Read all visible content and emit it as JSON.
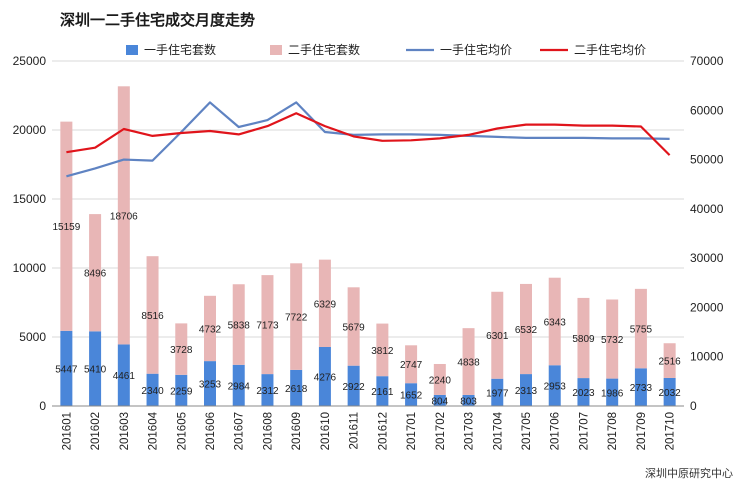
{
  "title": "深圳一二手住宅成交月度走势",
  "source": "深圳中原研究中心",
  "colors": {
    "new_bar": "#4a86d9",
    "second_bar": "#e8b6b6",
    "new_price_line": "#5f83c2",
    "second_price_line": "#e0141b",
    "grid": "#d9d9d9"
  },
  "legend": [
    {
      "label": "一手住宅套数",
      "kind": "bar",
      "color": "#4a86d9"
    },
    {
      "label": "二手住宅套数",
      "kind": "bar",
      "color": "#e8b6b6"
    },
    {
      "label": "一手住宅均价",
      "kind": "line",
      "color": "#5f83c2"
    },
    {
      "label": "二手住宅均价",
      "kind": "line",
      "color": "#e0141b"
    }
  ],
  "chart_data": {
    "type": "bar",
    "stacked": true,
    "title": "深圳一二手住宅成交月度走势",
    "categories": [
      "201601",
      "201602",
      "201603",
      "201604",
      "201605",
      "201606",
      "201607",
      "201608",
      "201609",
      "201610",
      "201611",
      "201612",
      "201701",
      "201702",
      "201703",
      "201704",
      "201705",
      "201706",
      "201707",
      "201708",
      "201709",
      "201710"
    ],
    "series": [
      {
        "name": "一手住宅套数",
        "type": "bar",
        "axis": "left",
        "values": [
          5447,
          5410,
          4461,
          2340,
          2259,
          3253,
          2984,
          2312,
          2618,
          4276,
          2922,
          2161,
          1652,
          804,
          803,
          1977,
          2313,
          2953,
          2023,
          1986,
          2733,
          2032
        ]
      },
      {
        "name": "二手住宅套数",
        "type": "bar",
        "axis": "left",
        "values": [
          15159,
          8496,
          18706,
          8516,
          3728,
          4732,
          5838,
          7173,
          7722,
          6329,
          5679,
          3812,
          2747,
          2240,
          4838,
          6301,
          6532,
          6343,
          5809,
          5732,
          5755,
          2516
        ]
      },
      {
        "name": "一手住宅均价",
        "type": "line",
        "axis": "right",
        "values": [
          46600,
          48200,
          50000,
          49800,
          55600,
          61600,
          56600,
          58000,
          61600,
          55600,
          55000,
          55100,
          55100,
          55000,
          54800,
          54600,
          54400,
          54400,
          54400,
          54300,
          54300,
          54200
        ]
      },
      {
        "name": "二手住宅均价",
        "type": "line",
        "axis": "right",
        "values": [
          51500,
          52400,
          56200,
          54800,
          55400,
          55800,
          55100,
          56800,
          59400,
          56800,
          54700,
          53800,
          53900,
          54300,
          55000,
          56300,
          57100,
          57100,
          56900,
          56900,
          56700,
          50900
        ]
      }
    ],
    "left_axis": {
      "min": 0,
      "max": 25000,
      "ticks": [
        "0",
        "5000",
        "10000",
        "15000",
        "20000",
        "25000"
      ]
    },
    "right_axis": {
      "min": 0,
      "max": 70000,
      "ticks": [
        "0",
        "10000",
        "20000",
        "30000",
        "40000",
        "50000",
        "60000",
        "70000"
      ]
    },
    "grid": true,
    "legend_position": "top"
  }
}
